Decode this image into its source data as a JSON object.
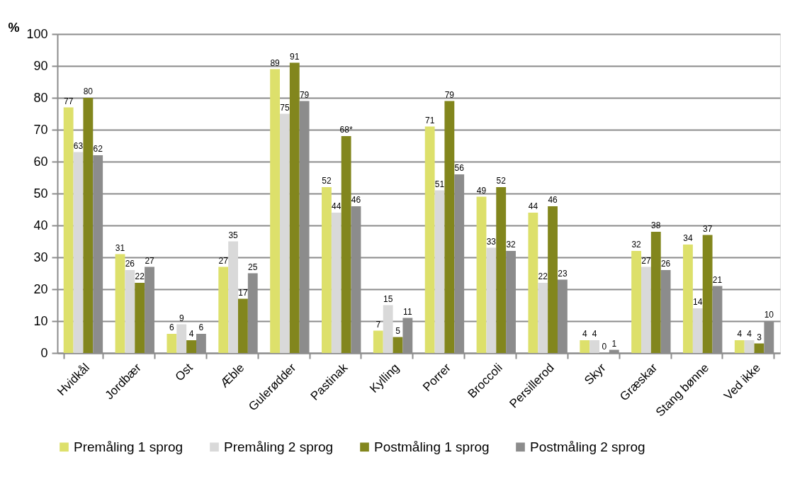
{
  "chart_data": {
    "type": "bar",
    "ylabel": "%",
    "categories": [
      "Hvidkål",
      "Jordbær",
      "Ost",
      "Æble",
      "Gulerødder",
      "Pastinak",
      "Kylling",
      "Porrer",
      "Broccoli",
      "Persillerod",
      "Skyr",
      "Græskar",
      "Stang bønne",
      "Ved ikke"
    ],
    "series": [
      {
        "name": "Premåling 1 sprog",
        "color": "#dde06b",
        "values": [
          77,
          31,
          6,
          27,
          89,
          52,
          7,
          71,
          49,
          44,
          4,
          32,
          34,
          4
        ],
        "value_labels": [
          "77",
          "31",
          "6",
          "27",
          "89",
          "52",
          "7",
          "71",
          "49",
          "44",
          "4",
          "32",
          "34",
          "4"
        ]
      },
      {
        "name": "Premåling 2 sprog",
        "color": "#d9d9d9",
        "values": [
          63,
          26,
          9,
          35,
          75,
          44,
          15,
          51,
          33,
          22,
          4,
          27,
          14,
          4
        ],
        "value_labels": [
          "63",
          "26",
          "9",
          "35",
          "75",
          "44",
          "15",
          "51",
          "33",
          "22",
          "4",
          "27",
          "14",
          "4"
        ]
      },
      {
        "name": "Postmåling 1 sprog",
        "color": "#82861d",
        "values": [
          80,
          22,
          4,
          17,
          91,
          68,
          5,
          79,
          52,
          46,
          0,
          38,
          37,
          3
        ],
        "value_labels": [
          "80",
          "22",
          "4",
          "17",
          "91",
          "68*",
          "5",
          "79",
          "52",
          "46",
          "0",
          "38",
          "37",
          "3"
        ]
      },
      {
        "name": "Postmåling 2 sprog",
        "color": "#8c8c8c",
        "values": [
          62,
          27,
          6,
          25,
          79,
          46,
          11,
          56,
          32,
          23,
          1,
          26,
          21,
          10
        ],
        "value_labels": [
          "62",
          "27",
          "6",
          "25",
          "79",
          "46",
          "11",
          "56",
          "32",
          "23",
          "1",
          "26",
          "21",
          "10"
        ]
      }
    ],
    "ylim": [
      0,
      100
    ],
    "yticks": [
      0,
      10,
      20,
      30,
      40,
      50,
      60,
      70,
      80,
      90,
      100
    ],
    "grid": "y",
    "legend": "bottom"
  }
}
